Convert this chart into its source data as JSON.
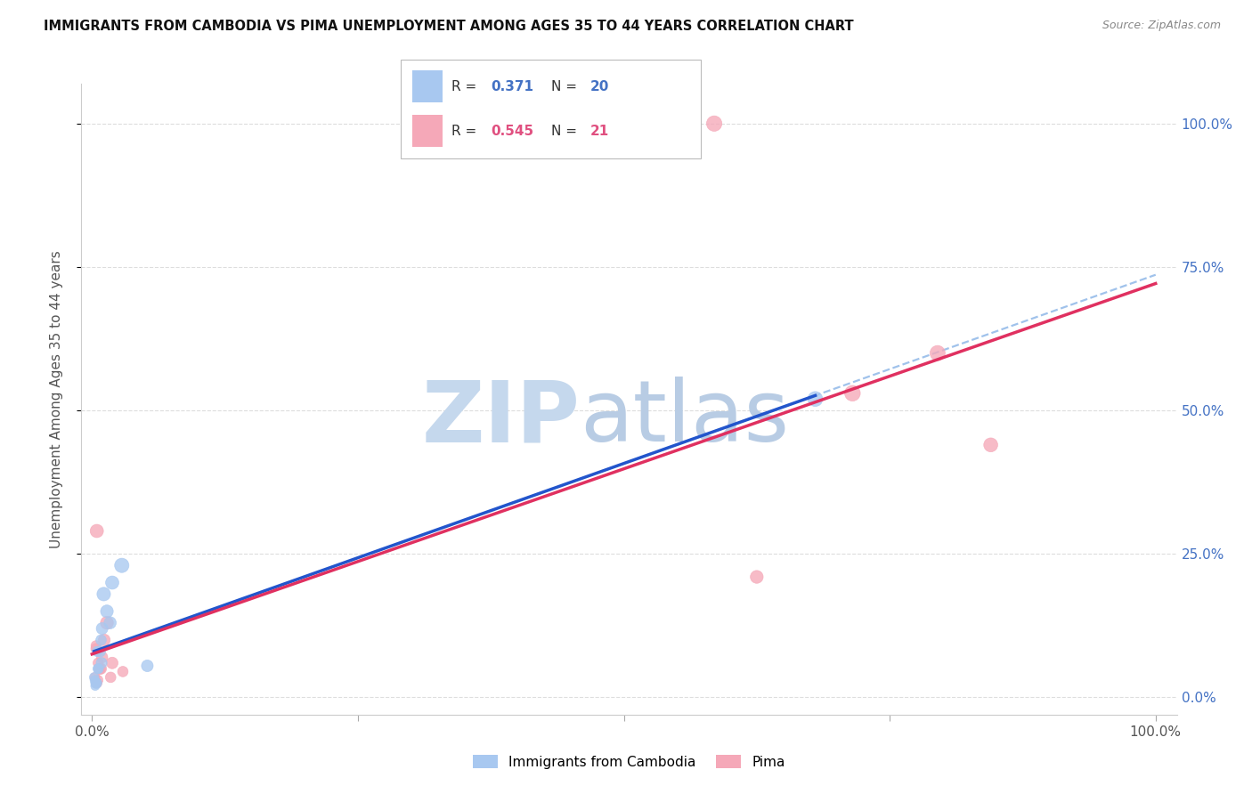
{
  "title": "IMMIGRANTS FROM CAMBODIA VS PIMA UNEMPLOYMENT AMONG AGES 35 TO 44 YEARS CORRELATION CHART",
  "source": "Source: ZipAtlas.com",
  "ylabel": "Unemployment Among Ages 35 to 44 years",
  "R_blue": 0.371,
  "N_blue": 20,
  "R_pink": 0.545,
  "N_pink": 21,
  "blue_color": "#a8c8f0",
  "pink_color": "#f5a8b8",
  "blue_line_color": "#2255cc",
  "pink_line_color": "#e03060",
  "blue_dashed_color": "#90b8e8",
  "legend_blue_label": "Immigrants from Cambodia",
  "legend_pink_label": "Pima",
  "legend_r_blue": "#4472c4",
  "legend_r_pink": "#e05080",
  "legend_n_blue": "#4472c4",
  "legend_n_pink": "#e05080",
  "right_axis_color": "#4472c4",
  "blue_x": [
    0.4,
    0.6,
    1.1,
    1.4,
    1.9,
    0.25,
    0.35,
    0.75,
    0.95,
    0.55,
    0.85,
    1.7,
    5.2,
    2.8,
    0.2,
    0.5,
    0.9,
    68.0,
    0.3,
    0.4
  ],
  "blue_y": [
    2.5,
    5.0,
    18.0,
    15.0,
    20.0,
    3.0,
    2.5,
    8.0,
    12.0,
    5.0,
    10.0,
    13.0,
    5.5,
    23.0,
    3.5,
    8.0,
    6.0,
    52.0,
    2.0,
    2.5
  ],
  "blue_size": [
    80,
    65,
    120,
    105,
    115,
    55,
    58,
    80,
    90,
    62,
    72,
    98,
    90,
    135,
    58,
    68,
    78,
    145,
    52,
    55
  ],
  "pink_x": [
    0.45,
    0.75,
    1.4,
    1.9,
    0.28,
    0.38,
    0.85,
    1.15,
    0.55,
    58.5,
    71.5,
    79.5,
    84.5,
    62.5,
    0.65,
    0.95,
    1.75,
    2.9,
    0.48,
    0.58,
    0.38
  ],
  "pink_y": [
    29.0,
    5.0,
    13.0,
    6.0,
    3.5,
    8.5,
    5.0,
    10.0,
    3.0,
    100.0,
    53.0,
    60.0,
    44.0,
    21.0,
    5.0,
    7.0,
    3.5,
    4.5,
    2.5,
    6.0,
    9.0
  ],
  "pink_size": [
    115,
    78,
    108,
    88,
    62,
    72,
    78,
    92,
    68,
    155,
    160,
    150,
    128,
    108,
    72,
    82,
    72,
    72,
    62,
    68,
    68
  ],
  "xlim": [
    -1,
    102
  ],
  "ylim": [
    -3,
    107
  ],
  "xticks": [
    0,
    25,
    50,
    75,
    100
  ],
  "yticks": [
    0,
    25,
    50,
    75,
    100
  ],
  "grid_color": "#dddddd",
  "spine_color": "#cccccc"
}
